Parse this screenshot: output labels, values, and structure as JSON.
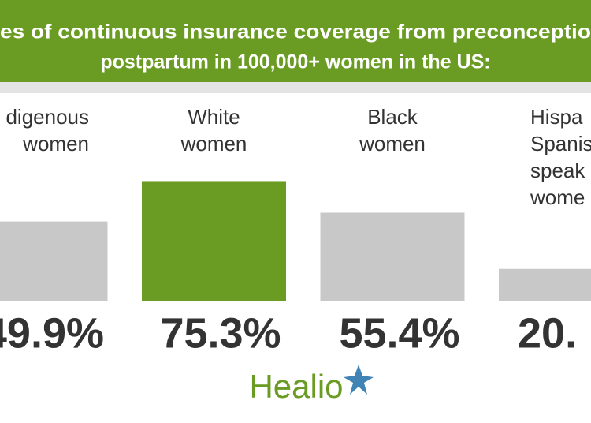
{
  "chart_data": {
    "type": "bar",
    "title_lines": [
      "es of continuous insurance coverage from preconceptio",
      "postpartum in 100,000+ women in the US:"
    ],
    "categories": [
      [
        "digenous",
        "women"
      ],
      [
        "White",
        "women"
      ],
      [
        "Black",
        "women"
      ],
      [
        "Hispa",
        "Spanis",
        "speak",
        "wome"
      ]
    ],
    "values": [
      49.9,
      75.3,
      55.4,
      20
    ],
    "value_labels": [
      "49.9%",
      "75.3%",
      "55.4%",
      "20."
    ],
    "colors": [
      "#c8c8c8",
      "#6a9b22",
      "#c8c8c8",
      "#c8c8c8"
    ],
    "ylim": [
      0,
      80
    ],
    "logo": "Healio"
  }
}
